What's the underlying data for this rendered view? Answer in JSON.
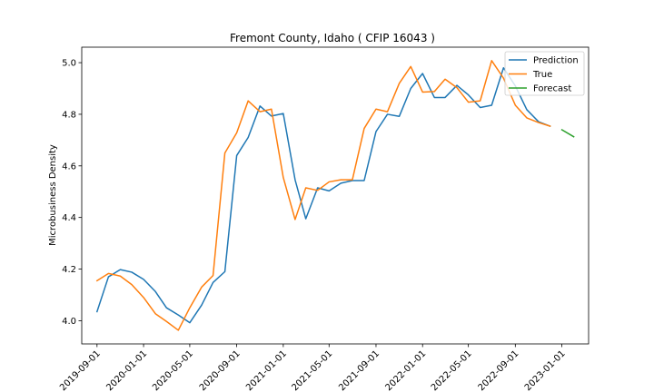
{
  "chart_data": {
    "type": "line",
    "title": "Fremont County, Idaho ( CFIP 16043 )",
    "xlabel": "",
    "ylabel": "Microbusiness Density",
    "x_tick_labels": [
      "2019-09-01",
      "2020-01-01",
      "2020-05-01",
      "2020-09-01",
      "2021-01-01",
      "2021-05-01",
      "2021-09-01",
      "2022-01-01",
      "2022-05-01",
      "2022-09-01",
      "2023-01-01"
    ],
    "y_ticks": [
      4.0,
      4.2,
      4.4,
      4.6,
      4.8,
      5.0
    ],
    "y_tick_labels": [
      "4.0",
      "4.2",
      "4.4",
      "4.6",
      "4.8",
      "5.0"
    ],
    "ylim": [
      3.91,
      5.06
    ],
    "xlim": [
      "2019-07-23",
      "2023-03-12"
    ],
    "grid": false,
    "legend_position": "top-right",
    "series": [
      {
        "name": "Prediction",
        "color": "#1f77b4",
        "points": [
          [
            "2019-09-01",
            4.035
          ],
          [
            "2019-10-01",
            4.17
          ],
          [
            "2019-11-01",
            4.198
          ],
          [
            "2019-12-01",
            4.188
          ],
          [
            "2020-01-01",
            4.16
          ],
          [
            "2020-02-01",
            4.113
          ],
          [
            "2020-03-01",
            4.05
          ],
          [
            "2020-04-01",
            4.022
          ],
          [
            "2020-05-01",
            3.992
          ],
          [
            "2020-06-01",
            4.06
          ],
          [
            "2020-07-01",
            4.148
          ],
          [
            "2020-08-01",
            4.19
          ],
          [
            "2020-09-01",
            4.64
          ],
          [
            "2020-10-01",
            4.71
          ],
          [
            "2020-11-01",
            4.832
          ],
          [
            "2020-12-01",
            4.793
          ],
          [
            "2021-01-01",
            4.803
          ],
          [
            "2021-02-01",
            4.546
          ],
          [
            "2021-03-01",
            4.395
          ],
          [
            "2021-04-01",
            4.515
          ],
          [
            "2021-05-01",
            4.503
          ],
          [
            "2021-06-01",
            4.533
          ],
          [
            "2021-07-01",
            4.543
          ],
          [
            "2021-08-01",
            4.543
          ],
          [
            "2021-09-01",
            4.733
          ],
          [
            "2021-10-01",
            4.8
          ],
          [
            "2021-11-01",
            4.792
          ],
          [
            "2021-12-01",
            4.9
          ],
          [
            "2022-01-01",
            4.958
          ],
          [
            "2022-02-01",
            4.865
          ],
          [
            "2022-03-01",
            4.865
          ],
          [
            "2022-04-01",
            4.912
          ],
          [
            "2022-05-01",
            4.875
          ],
          [
            "2022-06-01",
            4.826
          ],
          [
            "2022-07-01",
            4.835
          ],
          [
            "2022-08-01",
            4.98
          ],
          [
            "2022-09-01",
            4.91
          ],
          [
            "2022-10-01",
            4.818
          ],
          [
            "2022-11-01",
            4.771
          ],
          [
            "2022-12-01",
            4.754
          ]
        ]
      },
      {
        "name": "True",
        "color": "#ff7f0e",
        "points": [
          [
            "2019-09-01",
            4.155
          ],
          [
            "2019-10-01",
            4.183
          ],
          [
            "2019-11-01",
            4.173
          ],
          [
            "2019-12-01",
            4.14
          ],
          [
            "2020-01-01",
            4.09
          ],
          [
            "2020-02-01",
            4.027
          ],
          [
            "2020-03-01",
            3.997
          ],
          [
            "2020-04-01",
            3.963
          ],
          [
            "2020-05-01",
            4.05
          ],
          [
            "2020-06-01",
            4.13
          ],
          [
            "2020-07-01",
            4.175
          ],
          [
            "2020-08-01",
            4.65
          ],
          [
            "2020-09-01",
            4.728
          ],
          [
            "2020-10-01",
            4.852
          ],
          [
            "2020-11-01",
            4.81
          ],
          [
            "2020-12-01",
            4.82
          ],
          [
            "2021-01-01",
            4.555
          ],
          [
            "2021-02-01",
            4.392
          ],
          [
            "2021-03-01",
            4.515
          ],
          [
            "2021-04-01",
            4.505
          ],
          [
            "2021-05-01",
            4.538
          ],
          [
            "2021-06-01",
            4.546
          ],
          [
            "2021-07-01",
            4.546
          ],
          [
            "2021-08-01",
            4.745
          ],
          [
            "2021-09-01",
            4.82
          ],
          [
            "2021-10-01",
            4.81
          ],
          [
            "2021-11-01",
            4.92
          ],
          [
            "2021-12-01",
            4.985
          ],
          [
            "2022-01-01",
            4.886
          ],
          [
            "2022-02-01",
            4.888
          ],
          [
            "2022-03-01",
            4.936
          ],
          [
            "2022-04-01",
            4.903
          ],
          [
            "2022-05-01",
            4.847
          ],
          [
            "2022-06-01",
            4.852
          ],
          [
            "2022-07-01",
            5.008
          ],
          [
            "2022-08-01",
            4.94
          ],
          [
            "2022-09-01",
            4.835
          ],
          [
            "2022-10-01",
            4.786
          ],
          [
            "2022-11-01",
            4.768
          ],
          [
            "2022-12-01",
            4.754
          ]
        ]
      },
      {
        "name": "Forecast",
        "color": "#2ca02c",
        "points": [
          [
            "2023-01-01",
            4.74
          ],
          [
            "2023-02-01",
            4.713
          ]
        ]
      }
    ]
  }
}
